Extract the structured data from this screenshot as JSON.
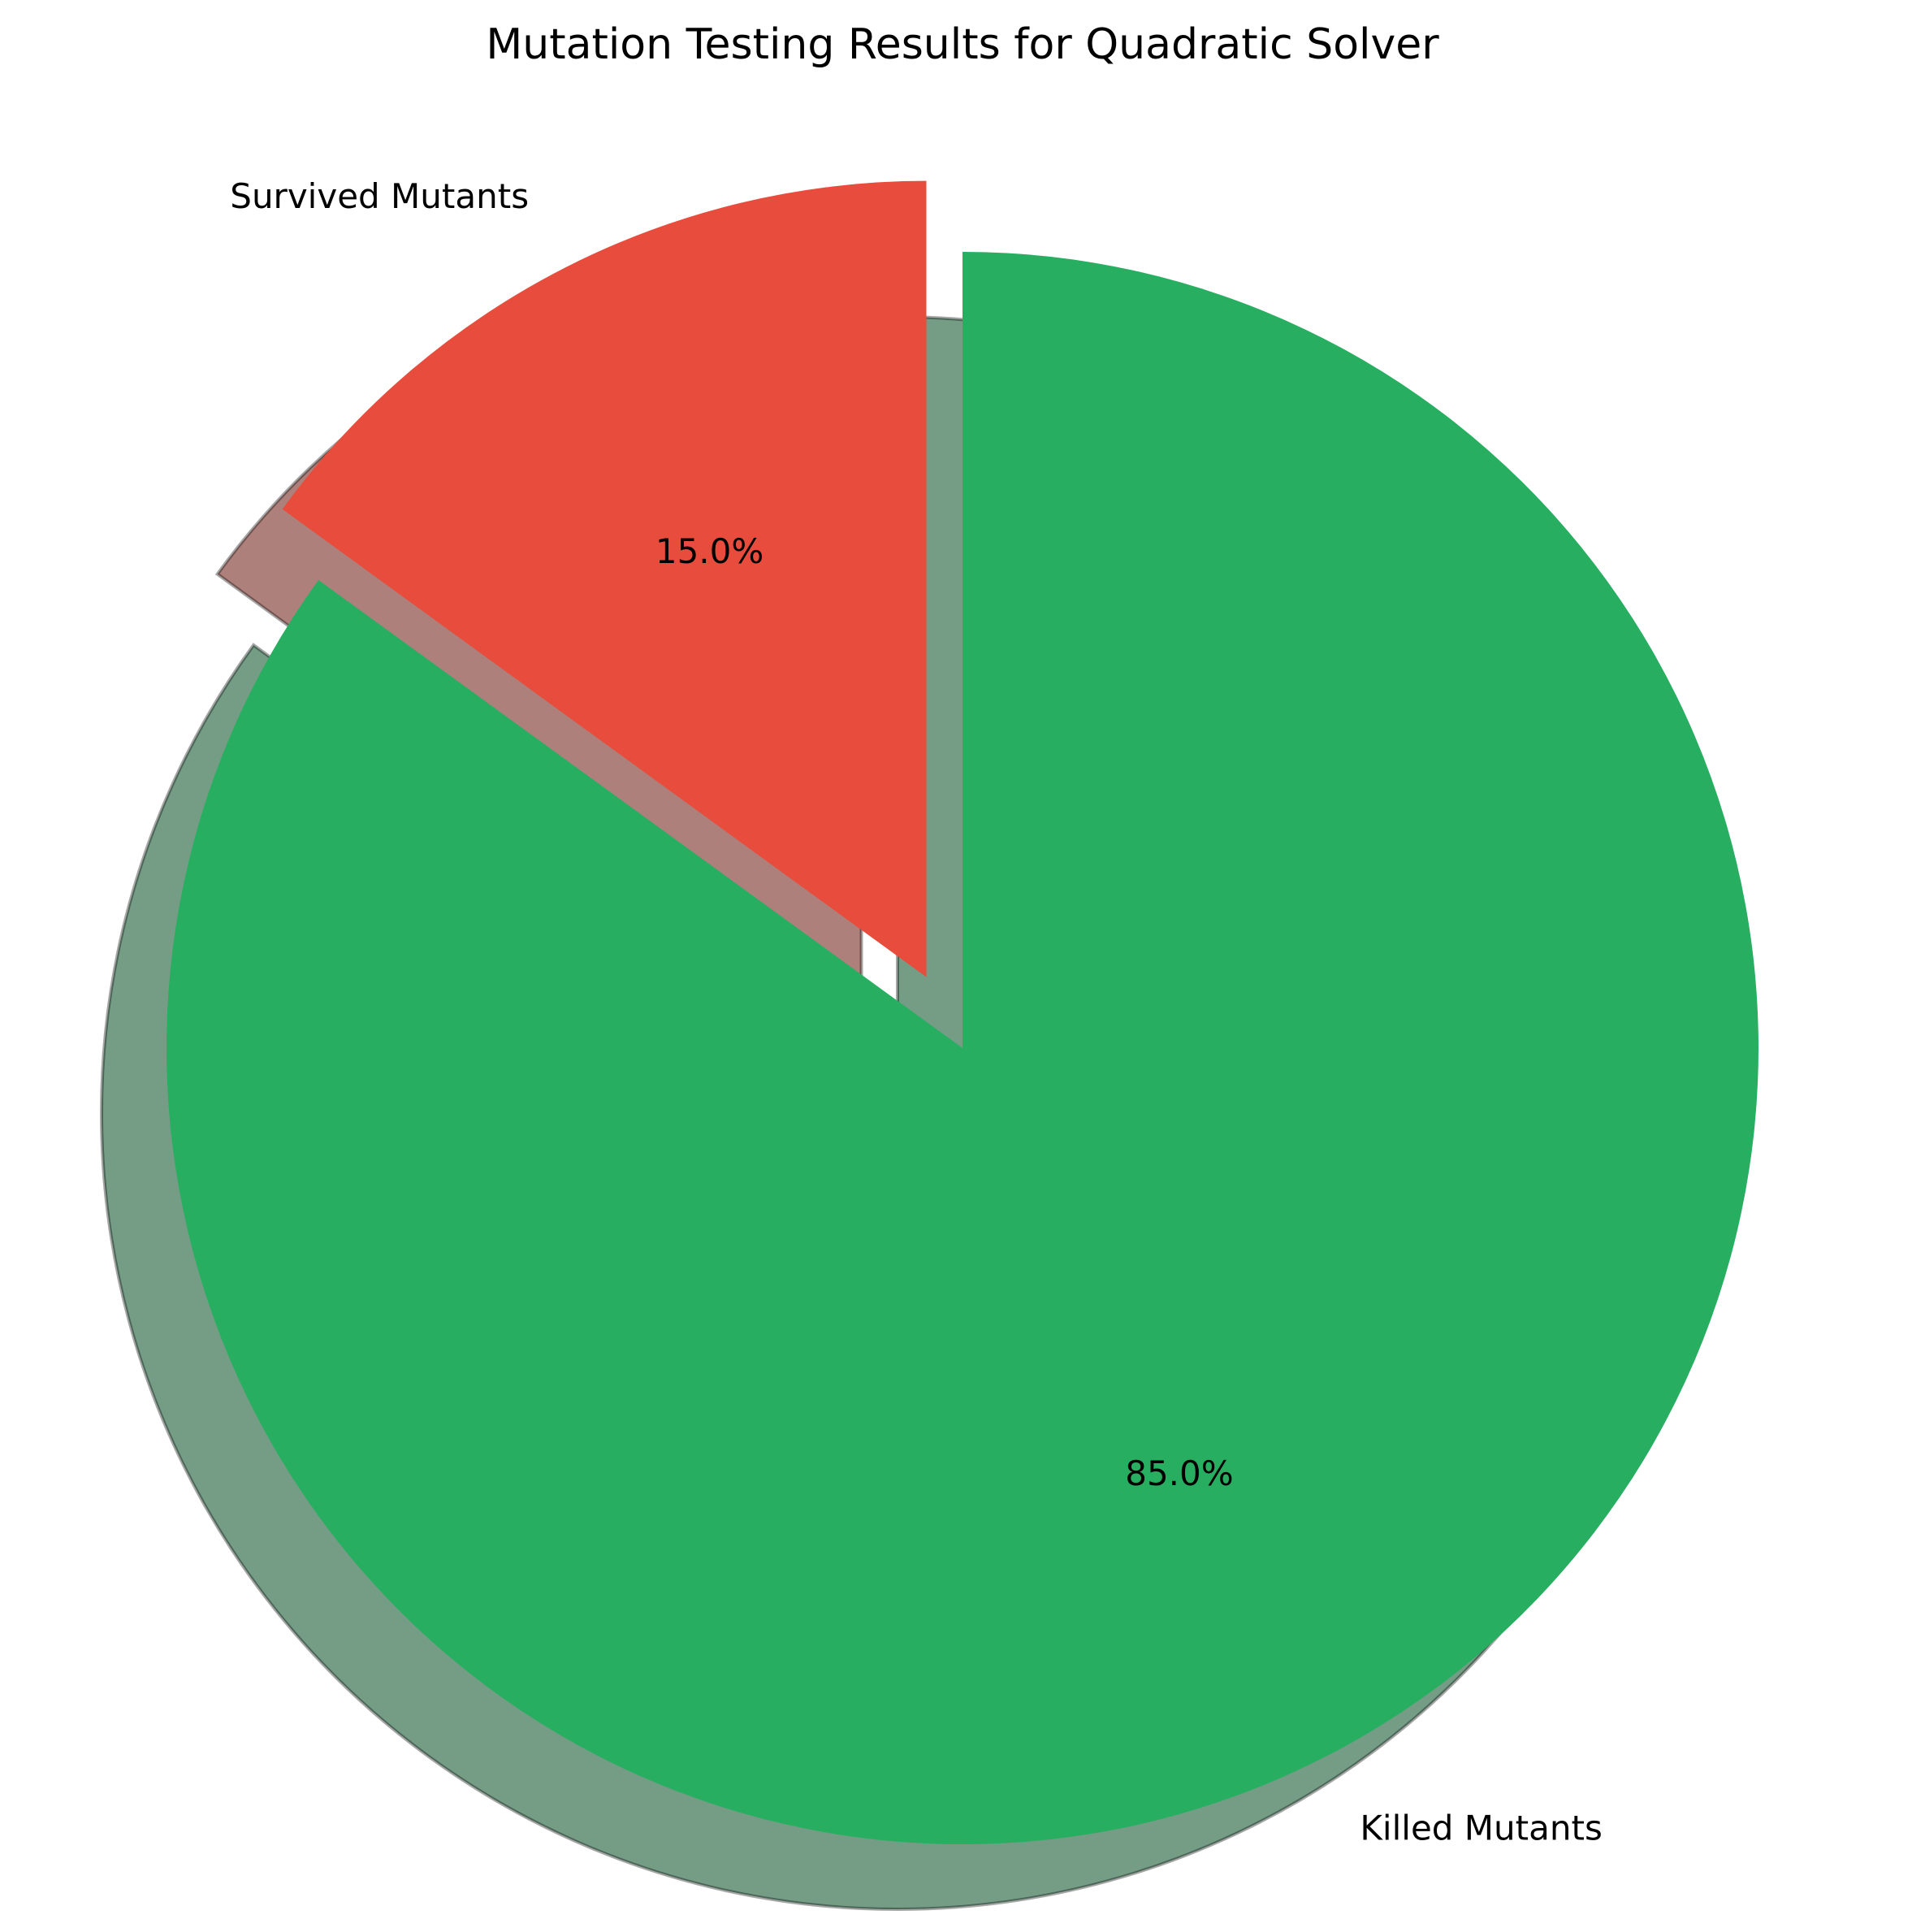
{
  "chart_data": {
    "type": "pie",
    "title": "Mutation Testing Results for Quadratic Solver",
    "start_angle_deg": 90,
    "direction": "clockwise",
    "shadow": true,
    "slices": [
      {
        "label": "Killed Mutants",
        "value": 85.0,
        "pct_label": "85.0%",
        "color": "#27ae60",
        "exploded": false
      },
      {
        "label": "Survived Mutants",
        "value": 15.0,
        "pct_label": "15.0%",
        "color": "#e74c3c",
        "exploded": true
      }
    ]
  }
}
